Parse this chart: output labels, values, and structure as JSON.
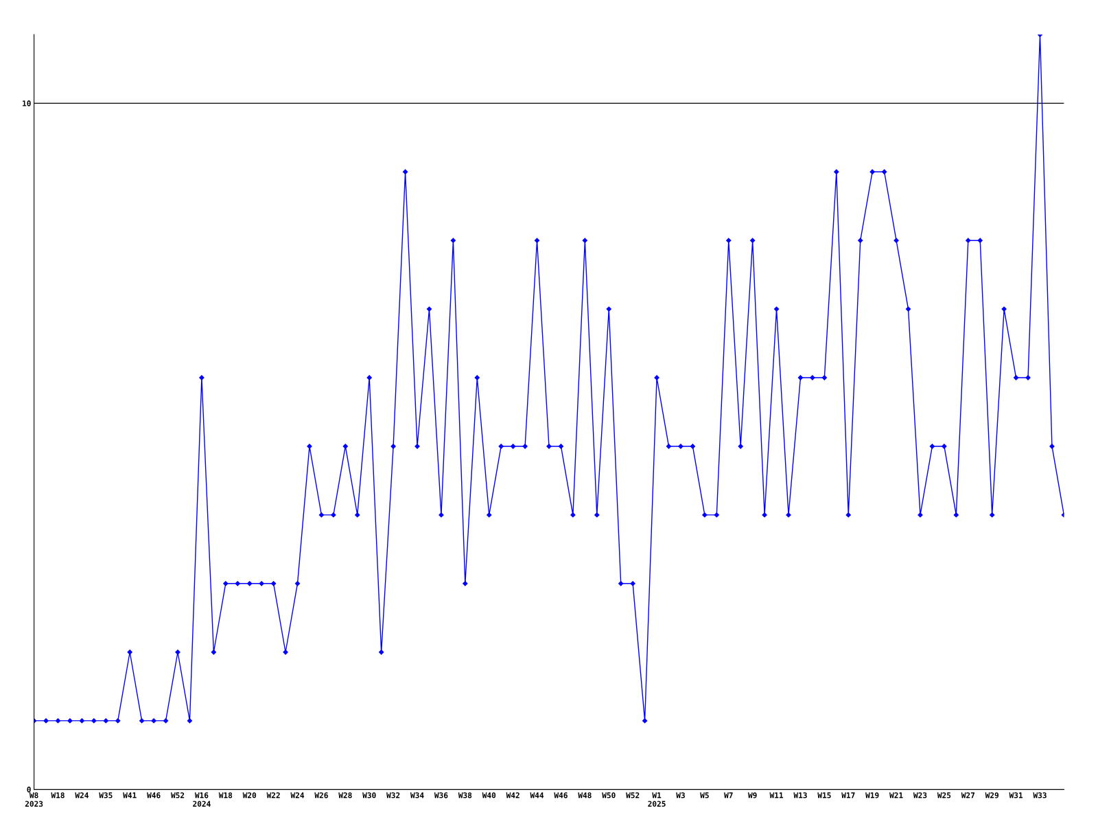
{
  "chart_data": {
    "type": "line",
    "categories": [
      "W8\n2023",
      null,
      "W18",
      null,
      "W24",
      null,
      "W35",
      null,
      "W41",
      null,
      "W46",
      null,
      "W52",
      null,
      "W16\n2024",
      null,
      "W18",
      null,
      "W20",
      null,
      "W22",
      null,
      "W24",
      null,
      "W26",
      null,
      "W28",
      null,
      "W30",
      null,
      "W32",
      null,
      "W34",
      null,
      "W36",
      null,
      "W38",
      null,
      "W40",
      null,
      "W42",
      null,
      "W44",
      null,
      "W46",
      null,
      "W48",
      null,
      "W50",
      null,
      "W52",
      null,
      "W1\n2025",
      null,
      "W3",
      null,
      "W5",
      null,
      "W7",
      null,
      "W9",
      null,
      "W11",
      null,
      "W13",
      null,
      "W15",
      null,
      "W17",
      null,
      "W19",
      null,
      "W21",
      null,
      "W23",
      null,
      "W25",
      null,
      "W27",
      null,
      "W29",
      null,
      "W31",
      null,
      "W33",
      null,
      null
    ],
    "series": [
      {
        "color": "#0000ff",
        "values": [
          1,
          1,
          1,
          1,
          1,
          1,
          1,
          1,
          2,
          1,
          1,
          1,
          2,
          1,
          6,
          2,
          3,
          3,
          3,
          3,
          3,
          2,
          3,
          5,
          4,
          4,
          5,
          4,
          6,
          2,
          5,
          9,
          5,
          7,
          4,
          8,
          3,
          6,
          4,
          5,
          5,
          5,
          8,
          5,
          5,
          4,
          8,
          4,
          7,
          3,
          3,
          1,
          6,
          5,
          5,
          5,
          4,
          4,
          8,
          5,
          8,
          4,
          7,
          4,
          6,
          6,
          6,
          9,
          4,
          8,
          9,
          9,
          8,
          7,
          4,
          5,
          5,
          4,
          8,
          8,
          4,
          7,
          6,
          6,
          11,
          5,
          4
        ]
      }
    ],
    "ylim": [
      0,
      11
    ],
    "yticks": [
      0,
      10
    ],
    "grid": "y",
    "marker": "diamond",
    "line_style": "solid"
  }
}
